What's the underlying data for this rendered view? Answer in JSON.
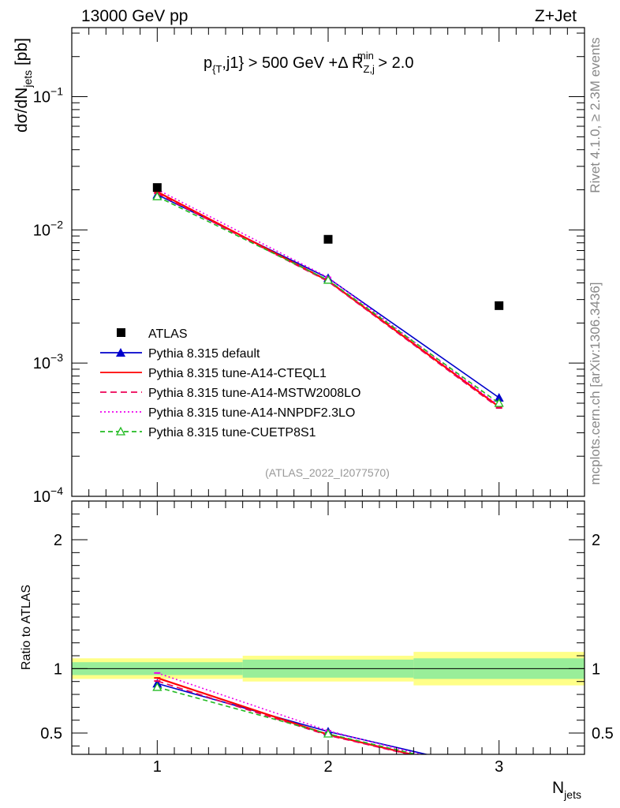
{
  "header": {
    "left": "13000 GeV pp",
    "right": "Z+Jet"
  },
  "side_labels": {
    "rivet": "Rivet 4.1.0, ≥ 2.3M events",
    "mcplots": "mcplots.cern.ch [arXiv:1306.3436]"
  },
  "chart_data": {
    "type": "line",
    "title": "p_{T},j1} > 500 GeV +Δ R_{Z,j}^{min} > 2.0",
    "title_parts": {
      "p": "p",
      "p_sub": "{T",
      "mid": ",j1} > 500 GeV +Δ R",
      "r_sub": "Z,j",
      "r_sup": "min",
      "tail": " > 2.0"
    },
    "reference": "(ATLAS_2022_I2077570)",
    "xlabel": {
      "main": "N",
      "sub": "jets"
    },
    "ylabel": {
      "main": "dσ/dN",
      "sub": "jets",
      "unit": " [pb]"
    },
    "ratio_ylabel": "Ratio to ATLAS",
    "x": [
      1,
      2,
      3
    ],
    "xlim": [
      0.5,
      3.5
    ],
    "x_ticks": [
      "1",
      "2",
      "3"
    ],
    "ylim": [
      0.0001,
      0.33
    ],
    "y_scale": "log",
    "y_ticks": [
      {
        "base": "10",
        "exp": "−1",
        "value": 0.1
      },
      {
        "base": "10",
        "exp": "−2",
        "value": 0.01
      },
      {
        "base": "10",
        "exp": "−3",
        "value": 0.001
      },
      {
        "base": "10",
        "exp": "−4",
        "value": 0.0001
      }
    ],
    "ratio_ylim": [
      0.335,
      2.3
    ],
    "ratio_y_ticks": [
      "0.5",
      "1",
      "2"
    ],
    "ratio_y_tick_values": [
      0.5,
      1,
      2
    ],
    "data": {
      "name": "ATLAS",
      "values": [
        0.0208,
        0.0085,
        0.0027
      ],
      "band_inner": [
        [
          0.95,
          1.05
        ],
        [
          0.93,
          1.07
        ],
        [
          0.92,
          1.08
        ]
      ],
      "band_outer": [
        [
          0.92,
          1.08
        ],
        [
          0.9,
          1.1
        ],
        [
          0.87,
          1.13
        ]
      ]
    },
    "series": [
      {
        "name": "Pythia 8.315 default",
        "color": "#0000cc",
        "dash": "",
        "marker": "triangle-filled",
        "values": [
          0.0184,
          0.00435,
          0.00055
        ]
      },
      {
        "name": "Pythia 8.315 tune-A14-CTEQL1",
        "color": "#ff0000",
        "dash": "",
        "marker": "none",
        "values": [
          0.0193,
          0.00415,
          0.00047
        ]
      },
      {
        "name": "Pythia 8.315 tune-A14-MSTW2008LO",
        "color": "#ee0055",
        "dash": "8,5",
        "marker": "none",
        "values": [
          0.0188,
          0.0041,
          0.00046
        ]
      },
      {
        "name": "Pythia 8.315 tune-A14-NNPDF2.3LO",
        "color": "#ee00ee",
        "dash": "2,3",
        "marker": "none",
        "values": [
          0.0201,
          0.0044,
          0.00048
        ]
      },
      {
        "name": "Pythia 8.315 tune-CUETP8S1",
        "color": "#22bb22",
        "dash": "6,4",
        "marker": "triangle-open",
        "values": [
          0.0178,
          0.0042,
          0.0005
        ]
      }
    ]
  }
}
